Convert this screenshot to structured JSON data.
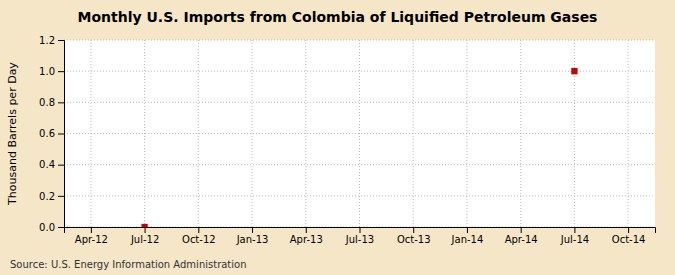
{
  "chart_data": {
    "type": "scatter",
    "title": "Monthly U.S. Imports from Colombia of Liquified Petroleum Gases",
    "y_label": "Thousand Barrels per Day",
    "annotation": "Source: U.S. Energy Information Administration",
    "categories": [
      "Apr-12",
      "Jul-12",
      "Oct-12",
      "Jan-13",
      "Apr-13",
      "Jul-13",
      "Oct-13",
      "Jan-14",
      "Apr-14",
      "Jul-14",
      "Oct-14"
    ],
    "values": [
      null,
      0.0,
      null,
      null,
      null,
      null,
      null,
      null,
      null,
      1.0,
      null
    ],
    "color": "#cc0000",
    "marker": "square",
    "ylim": [
      0.0,
      1.2
    ],
    "yticks": [
      {
        "value": 0.0,
        "label": "0.0"
      },
      0.2,
      0.4,
      0.6,
      0.8,
      {
        "value": 1.0,
        "label": "1.0"
      },
      1.2
    ],
    "grid": true
  }
}
